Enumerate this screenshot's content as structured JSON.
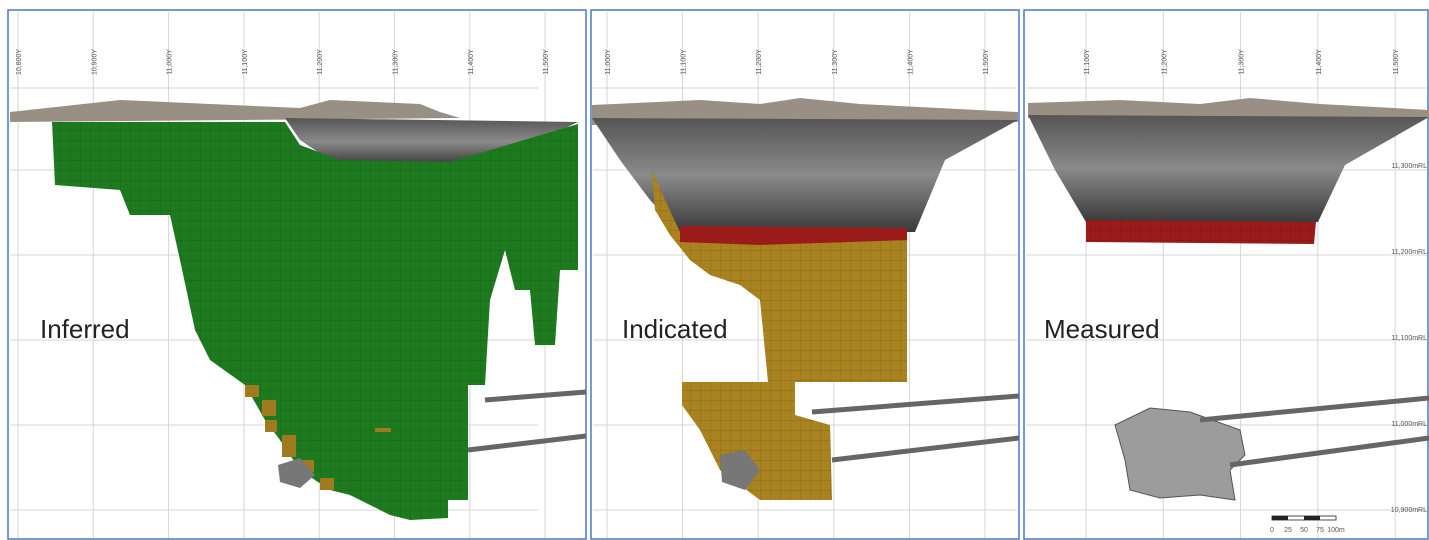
{
  "panels": [
    {
      "label": "Inferred",
      "x_ticks": [
        "10,800Y",
        "10,900Y",
        "11,000Y",
        "11,100Y",
        "11,200Y",
        "11,300Y",
        "11,400Y",
        "11,500Y"
      ]
    },
    {
      "label": "Indicated",
      "x_ticks": [
        "11,000Y",
        "11,100Y",
        "11,200Y",
        "11,300Y",
        "11,400Y",
        "11,500Y"
      ]
    },
    {
      "label": "Measured",
      "x_ticks": [
        "11,100Y",
        "11,200Y",
        "11,300Y",
        "11,400Y",
        "11,500Y"
      ],
      "elevation_ticks": [
        "11,300mRL",
        "11,200mRL",
        "11,100mRL",
        "11,000mRL",
        "10,900mRL"
      ],
      "scale_bar": [
        "0",
        "25",
        "50",
        "75",
        "100m"
      ]
    }
  ]
}
